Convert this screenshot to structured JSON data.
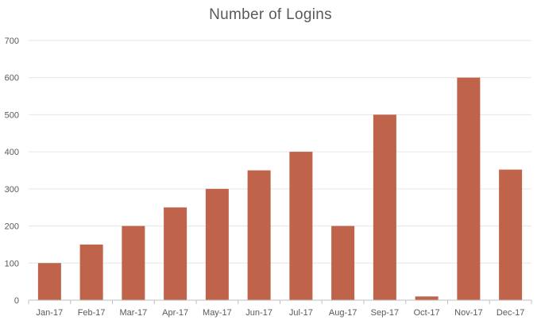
{
  "chart_data": {
    "type": "bar",
    "title": "Number of Logins",
    "xlabel": "",
    "ylabel": "",
    "categories": [
      "Jan-17",
      "Feb-17",
      "Mar-17",
      "Apr-17",
      "May-17",
      "Jun-17",
      "Jul-17",
      "Aug-17",
      "Sep-17",
      "Oct-17",
      "Nov-17",
      "Dec-17"
    ],
    "values": [
      100,
      150,
      200,
      250,
      300,
      350,
      400,
      200,
      500,
      10,
      600,
      352
    ],
    "ylim": [
      0,
      700
    ],
    "yticks": [
      "0",
      "100",
      "200",
      "300",
      "400",
      "500",
      "600",
      "700"
    ],
    "grid": true,
    "legend": "none",
    "colors": {
      "bar": "#c0634b",
      "grid": "#e6e6e6",
      "axis": "#bfbfbf",
      "tick_text": "#595959"
    }
  }
}
